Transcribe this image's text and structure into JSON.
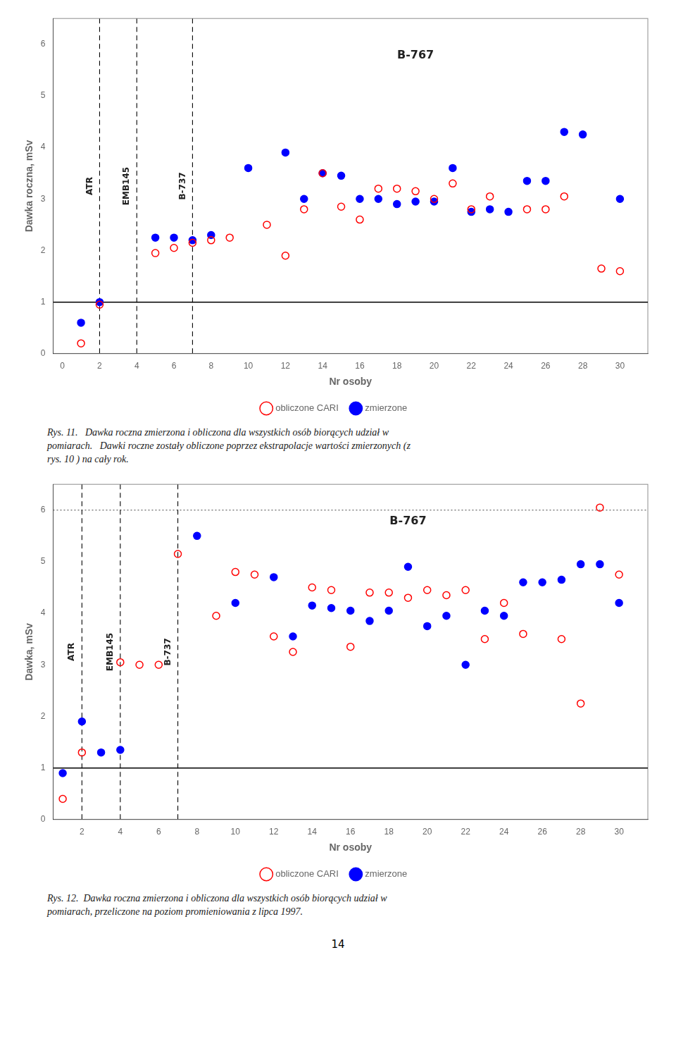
{
  "chart_data": [
    {
      "type": "scatter",
      "xlabel": "Nr osoby",
      "ylabel": "Dawka roczna, mSv",
      "xlim": [
        -0.5,
        31.5
      ],
      "ylim": [
        0,
        6.5
      ],
      "xticks": [
        0,
        2,
        4,
        6,
        8,
        10,
        12,
        14,
        16,
        18,
        20,
        22,
        24,
        26,
        28,
        30
      ],
      "yticks": [
        0,
        1,
        2,
        3,
        4,
        5,
        6
      ],
      "grid": false,
      "legend": "bottom",
      "series": [
        {
          "name": "obliczone CARI",
          "color": "red",
          "marker": "open_circle",
          "x": [
            1,
            2,
            5,
            6,
            7,
            8,
            9,
            11,
            12,
            13,
            14,
            15,
            16,
            17,
            18,
            19,
            20,
            21,
            22,
            23,
            25,
            26,
            27,
            29,
            30
          ],
          "values": [
            0.2,
            0.95,
            1.95,
            2.05,
            2.15,
            2.2,
            2.25,
            2.5,
            1.9,
            2.8,
            3.5,
            2.85,
            2.6,
            3.2,
            3.2,
            3.15,
            3.0,
            3.3,
            2.8,
            3.05,
            2.8,
            2.8,
            3.05,
            1.65,
            1.6
          ]
        },
        {
          "name": "zmierzone",
          "color": "blue",
          "marker": "circle",
          "x": [
            1,
            2,
            5,
            6,
            7,
            8,
            10,
            12,
            13,
            14,
            15,
            16,
            17,
            18,
            19,
            20,
            21,
            22,
            23,
            24,
            25,
            26,
            27,
            28,
            30
          ],
          "values": [
            0.6,
            1.0,
            2.25,
            2.25,
            2.2,
            2.3,
            3.6,
            3.9,
            3.0,
            3.5,
            3.45,
            3.0,
            3.0,
            2.9,
            2.95,
            2.95,
            3.6,
            2.75,
            2.8,
            2.75,
            3.35,
            3.35,
            4.3,
            4.25,
            3.0
          ]
        }
      ],
      "hlines": [
        {
          "y": 1.0,
          "color": "black",
          "line_style": "solid"
        }
      ],
      "vlines": [
        {
          "x": 2.0,
          "color": "black",
          "line_style": "dashed"
        },
        {
          "x": 4.0,
          "color": "black",
          "line_style": "dashed"
        },
        {
          "x": 7.0,
          "color": "black",
          "line_style": "dashed"
        }
      ],
      "vline_labels": [
        {
          "text": "ATR",
          "x": 1.7,
          "y": 3.25
        },
        {
          "text": "EMB145",
          "x": 3.7,
          "y": 3.25
        },
        {
          "text": "B-737",
          "x": 6.7,
          "y": 3.25
        }
      ],
      "annotations": [
        {
          "text": "B-767",
          "x": 19,
          "y": 5.785
        }
      ],
      "caption": [
        "Rys. 11.   Dawka roczna zmierzona i obliczona dla wszystkich osób biorących udział w",
        "pomiarach.   Dawki roczne zostały obliczone poprzez ekstrapolacje wartości zmierzonych (z",
        "rys. 10 ) na cały rok."
      ]
    },
    {
      "type": "scatter",
      "xlabel": "Nr osoby",
      "ylabel": "Dawka, mSv",
      "xlim": [
        0.5,
        31.5
      ],
      "ylim": [
        0,
        6.5
      ],
      "xticks": [
        2,
        4,
        6,
        8,
        10,
        12,
        14,
        16,
        18,
        20,
        22,
        24,
        26,
        28,
        30
      ],
      "yticks": [
        0,
        1,
        2,
        3,
        4,
        5,
        6
      ],
      "grid": false,
      "legend": "bottom",
      "series": [
        {
          "name": "obliczone CARI",
          "color": "red",
          "marker": "open_circle",
          "x": [
            1,
            2,
            4,
            5,
            6,
            7,
            9,
            10,
            11,
            12,
            13,
            14,
            15,
            16,
            17,
            18,
            19,
            20,
            21,
            22,
            23,
            24,
            25,
            27,
            28,
            29,
            30
          ],
          "values": [
            0.4,
            1.3,
            3.05,
            3.0,
            3.0,
            5.15,
            3.95,
            4.8,
            4.75,
            3.55,
            3.25,
            4.5,
            4.45,
            3.35,
            4.4,
            4.4,
            4.3,
            4.45,
            4.35,
            4.45,
            3.5,
            4.2,
            3.6,
            3.5,
            2.25,
            6.05,
            4.75
          ]
        },
        {
          "name": "zmierzone",
          "color": "blue",
          "marker": "circle",
          "x": [
            1,
            2,
            3,
            4,
            8,
            10,
            12,
            13,
            14,
            15,
            16,
            17,
            18,
            19,
            20,
            21,
            22,
            23,
            24,
            25,
            26,
            27,
            28,
            29,
            30
          ],
          "values": [
            0.9,
            1.9,
            1.3,
            1.35,
            5.5,
            4.2,
            4.7,
            3.55,
            4.15,
            4.1,
            4.05,
            3.85,
            4.05,
            4.9,
            3.75,
            3.95,
            3.0,
            4.05,
            3.95,
            4.6,
            4.6,
            4.65,
            4.95,
            4.95,
            4.2
          ]
        }
      ],
      "hlines": [
        {
          "y": 1.0,
          "color": "black",
          "line_style": "solid"
        },
        {
          "y": 6.0,
          "color": "gray",
          "line_style": "dotted"
        }
      ],
      "vlines": [
        {
          "x": 2.0,
          "color": "black",
          "line_style": "dashed"
        },
        {
          "x": 4.0,
          "color": "black",
          "line_style": "dashed"
        },
        {
          "x": 7.0,
          "color": "black",
          "line_style": "dashed"
        }
      ],
      "vline_labels": [
        {
          "text": "ATR",
          "x": 1.7,
          "y": 3.25
        },
        {
          "text": "EMB145",
          "x": 3.7,
          "y": 3.25
        },
        {
          "text": "B-737",
          "x": 6.7,
          "y": 3.25
        }
      ],
      "annotations": [
        {
          "text": "B-767",
          "x": 19,
          "y": 5.785
        }
      ],
      "caption": [
        "Rys. 12.  Dawka roczna zmierzona i obliczona dla wszystkich osób biorących udział w",
        "pomiarach, przeliczone na poziom promieniowania z lipca 1997."
      ]
    }
  ],
  "page_number": "14"
}
